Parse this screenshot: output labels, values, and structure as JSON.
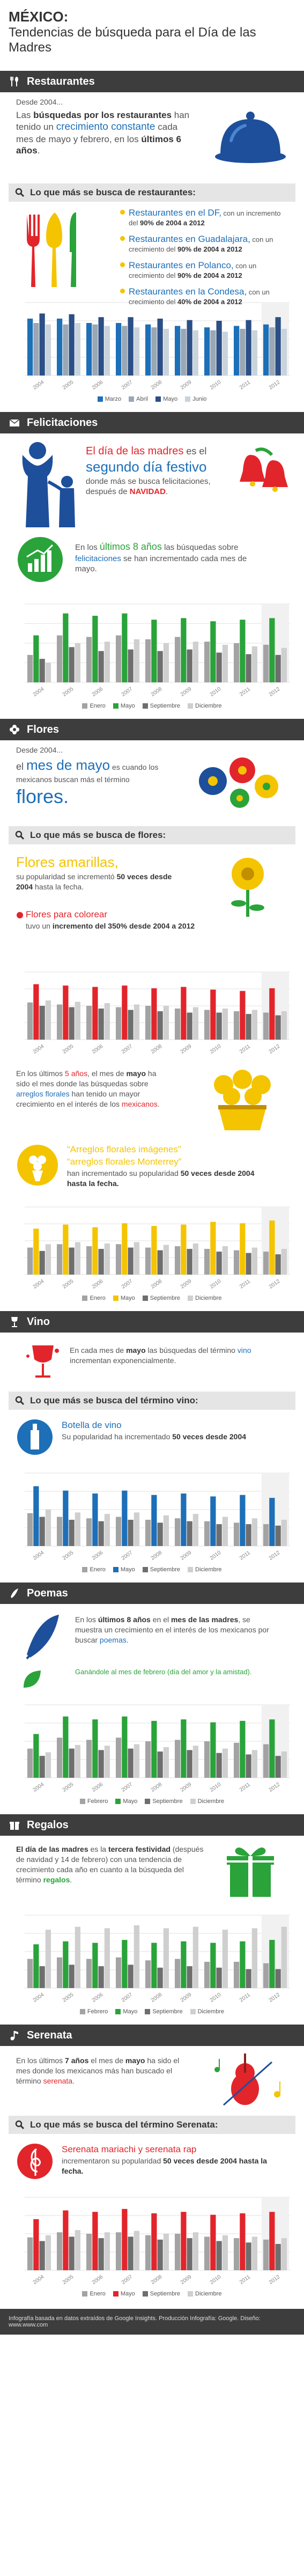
{
  "header": {
    "country": "MÉXICO:",
    "subtitle": "Tendencias de búsqueda para el Día de las Madres"
  },
  "restaurantes": {
    "title": "Restaurantes",
    "intro_small": "Desde 2004...",
    "intro_p1": "Las ",
    "intro_b1": "búsquedas por los restaurantes",
    "intro_p2": " han tenido un ",
    "intro_blue": "crecimiento constante",
    "intro_p3": " cada mes de mayo y febrero, en los ",
    "intro_b2": "últimos 6 años",
    "intro_p4": ".",
    "sub_title": "Lo que más se busca de restaurantes:",
    "items": [
      {
        "loc": "Restaurantes en el DF,",
        "pre": " con un incremento del ",
        "pct": "90% de 2004 a 2012"
      },
      {
        "loc": "Restaurantes en Guadalajara,",
        "pre": " con un crecimiento del ",
        "pct": "90% de 2004 a 2012"
      },
      {
        "loc": "Restaurantes en Polanco,",
        "pre": " con un crecimiento del ",
        "pct": "90% de 2004 a 2012"
      },
      {
        "loc": "Restaurantes en la Condesa,",
        "pre": " con un crecimiento del ",
        "pct": "40% de 2004 a 2012"
      }
    ]
  },
  "felicitaciones": {
    "title": "Felicitaciones",
    "p1_red": "El día de las madres",
    "p1_a": " es el ",
    "p1_blue": "segundo día festivo",
    "p1_b": " donde más se busca felicitaciones, después de ",
    "p1_red2": "NAVIDAD",
    "p1_c": ".",
    "p2_a": "En los ",
    "p2_green": "últimos 8 años",
    "p2_b": " las búsquedas sobre ",
    "p2_blue": "felicitaciones",
    "p2_c": " se han incrementado cada mes de mayo."
  },
  "flores": {
    "title": "Flores",
    "intro_small": "Desde 2004...",
    "p_a": "el ",
    "p_blue": "mes de mayo",
    "p_b": " es cuando los mexicanos buscan más el término ",
    "p_big": "flores.",
    "sub_title": "Lo que más se busca de flores:",
    "amarillas": "Flores amarillas,",
    "amarillas_desc1": "su popularidad se incrementó ",
    "amarillas_desc2": "50 veces desde 2004",
    "amarillas_desc3": " hasta la fecha.",
    "colorear": "Flores para colorear",
    "colorear_desc1": "tuvo un ",
    "colorear_desc2": "incremento del 350% desde 2004 a 2012",
    "p3_a": "En los últimos ",
    "p3_red": "5 años",
    "p3_b": ", el mes de ",
    "p3_bold": "mayo",
    "p3_c": " ha sido el mes donde las búsquedas sobre ",
    "p3_blue": "arreglos florales",
    "p3_d": " han tenido un mayor crecimiento en el interés de los ",
    "p3_red2": "mexicanos",
    "p3_e": ".",
    "arreglos1": "“Arreglos florales imágenes”",
    "arreglos2": "“arreglos florales Monterrey”",
    "arreglos_desc1": "han incrementado su popularidad ",
    "arreglos_desc2": "50 veces desde 2004 hasta la fecha."
  },
  "vino": {
    "title": "Vino",
    "p_a": "En cada mes de ",
    "p_bold": "mayo",
    "p_b": " las búsquedas del término ",
    "p_blue": "vino",
    "p_c": " incrementan exponencialmente.",
    "sub_title": "Lo que más se busca del término vino:",
    "item": "Botella de vino",
    "item_desc1": "Su popularidad ha incrementado ",
    "item_desc2": "50 veces desde 2004"
  },
  "poemas": {
    "title": "Poemas",
    "p_a": "En los ",
    "p_bold": "últimos 8 años",
    "p_b": " en el ",
    "p_bold2": "mes de las madres",
    "p_c": ", se muestra un crecimiento en el interés de los mexicanos por buscar ",
    "p_blue": "poemas",
    "p_d": ".",
    "p2_green": "Ganándole al mes de febrero (día del amor y la amistad)."
  },
  "regalos": {
    "title": "Regalos",
    "p_bold": "El día de las madres",
    "p_a": " es la ",
    "p_bold2": "tercera festividad",
    "p_b": " (después de navidad y 14 de febrero) con una tendencia de crecimiento cada año en cuanto a la búsqueda del término ",
    "p_blue": "regalos",
    "p_c": "."
  },
  "serenata": {
    "title": "Serenata",
    "p_a": "En los últimos ",
    "p_bold": "7 años",
    "p_b": " el mes de ",
    "p_bold2": "mayo",
    "p_c": " ha sido el mes donde los mexicanos más han buscado el término ",
    "p_red": "serenata",
    "p_d": ".",
    "sub_title": "Lo que más se busca del término Serenata:",
    "item": "Serenata mariachi y serenata rap",
    "item_desc1": "incrementaron su popularidad ",
    "item_desc2": "50 veces desde 2004 hasta la fecha."
  },
  "footer": {
    "text": "Infografía basada en datos extraídos de Google Insights. Producción Infografía: Google. Diseño: www.www.com"
  },
  "colors": {
    "blue": "#1d6fb8",
    "red": "#e2252b",
    "green": "#2aa33a",
    "yellow": "#f4c400",
    "dark": "#3d3d3d"
  },
  "chart_data": [
    {
      "type": "bar",
      "id": "restaurantes",
      "categories": [
        "2004",
        "2005",
        "2006",
        "2007",
        "2008",
        "2009",
        "2010",
        "2011",
        "2012"
      ],
      "ylim": [
        0,
        100
      ],
      "series": [
        {
          "name": "Marzo",
          "color": "#1d6fb8",
          "values": [
            78,
            78,
            72,
            72,
            70,
            68,
            66,
            68,
            70
          ]
        },
        {
          "name": "Abril",
          "color": "#9aa7b4",
          "values": [
            72,
            70,
            70,
            68,
            66,
            64,
            62,
            64,
            66
          ]
        },
        {
          "name": "Mayo",
          "color": "#2b4f86",
          "values": [
            85,
            84,
            80,
            80,
            78,
            76,
            75,
            76,
            80
          ]
        },
        {
          "name": "Junio",
          "color": "#c9d3dc",
          "values": [
            70,
            72,
            68,
            66,
            64,
            62,
            60,
            62,
            64
          ]
        }
      ]
    },
    {
      "type": "bar",
      "id": "felicitaciones",
      "categories": [
        "2004",
        "2005",
        "2006",
        "2007",
        "2008",
        "2009",
        "2010",
        "2011",
        "2012"
      ],
      "ylim": [
        0,
        100
      ],
      "series": [
        {
          "name": "Enero",
          "color": "#a3a3a3",
          "values": [
            35,
            60,
            58,
            60,
            55,
            58,
            52,
            50,
            48
          ]
        },
        {
          "name": "Mayo",
          "color": "#2aa33a",
          "values": [
            60,
            88,
            85,
            88,
            80,
            82,
            78,
            80,
            82
          ]
        },
        {
          "name": "Septiembre",
          "color": "#6e6e6e",
          "values": [
            30,
            45,
            40,
            42,
            40,
            42,
            38,
            36,
            35
          ]
        },
        {
          "name": "Diciembre",
          "color": "#cfcfcf",
          "values": [
            25,
            50,
            52,
            55,
            50,
            52,
            48,
            46,
            44
          ]
        }
      ]
    },
    {
      "type": "bar",
      "id": "flores",
      "categories": [
        "2004",
        "2005",
        "2006",
        "2007",
        "2008",
        "2009",
        "2010",
        "2011",
        "2012"
      ],
      "ylim": [
        0,
        100
      ],
      "series": [
        {
          "name": "Enero",
          "color": "#a3a3a3",
          "values": [
            55,
            52,
            50,
            48,
            50,
            46,
            44,
            42,
            40
          ]
        },
        {
          "name": "Mayo",
          "color": "#e2252b",
          "values": [
            82,
            80,
            78,
            80,
            76,
            78,
            74,
            72,
            76
          ]
        },
        {
          "name": "Septiembre",
          "color": "#6e6e6e",
          "values": [
            50,
            48,
            46,
            44,
            42,
            40,
            40,
            38,
            36
          ]
        },
        {
          "name": "Diciembre",
          "color": "#cfcfcf",
          "values": [
            58,
            56,
            54,
            52,
            50,
            48,
            46,
            44,
            42
          ]
        }
      ]
    },
    {
      "type": "bar",
      "id": "arreglos",
      "categories": [
        "2004",
        "2005",
        "2006",
        "2007",
        "2008",
        "2009",
        "2010",
        "2011",
        "2012"
      ],
      "ylim": [
        0,
        100
      ],
      "series": [
        {
          "name": "Enero",
          "color": "#a3a3a3",
          "values": [
            40,
            45,
            42,
            45,
            40,
            42,
            38,
            36,
            34
          ]
        },
        {
          "name": "Mayo",
          "color": "#f4c400",
          "values": [
            68,
            74,
            70,
            76,
            72,
            74,
            78,
            76,
            80
          ]
        },
        {
          "name": "Septiembre",
          "color": "#6e6e6e",
          "values": [
            35,
            40,
            38,
            40,
            36,
            38,
            34,
            32,
            30
          ]
        },
        {
          "name": "Diciembre",
          "color": "#cfcfcf",
          "values": [
            45,
            48,
            46,
            48,
            44,
            46,
            42,
            40,
            38
          ]
        }
      ]
    },
    {
      "type": "bar",
      "id": "vino",
      "categories": [
        "2004",
        "2005",
        "2006",
        "2007",
        "2008",
        "2009",
        "2010",
        "2011",
        "2012"
      ],
      "ylim": [
        0,
        100
      ],
      "series": [
        {
          "name": "Enero",
          "color": "#a3a3a3",
          "values": [
            45,
            40,
            38,
            40,
            36,
            38,
            34,
            32,
            30
          ]
        },
        {
          "name": "Mayo",
          "color": "#1d6fb8",
          "values": [
            82,
            76,
            72,
            76,
            70,
            72,
            68,
            70,
            66
          ]
        },
        {
          "name": "Septiembre",
          "color": "#6e6e6e",
          "values": [
            40,
            36,
            34,
            36,
            32,
            34,
            30,
            30,
            28
          ]
        },
        {
          "name": "Diciembre",
          "color": "#cfcfcf",
          "values": [
            50,
            46,
            44,
            46,
            42,
            44,
            40,
            38,
            36
          ]
        }
      ]
    },
    {
      "type": "bar",
      "id": "poemas",
      "categories": [
        "2004",
        "2005",
        "2006",
        "2007",
        "2008",
        "2009",
        "2010",
        "2011",
        "2012"
      ],
      "ylim": [
        0,
        100
      ],
      "series": [
        {
          "name": "Febrero",
          "color": "#a3a3a3",
          "values": [
            40,
            55,
            52,
            55,
            50,
            52,
            50,
            48,
            46
          ]
        },
        {
          "name": "Mayo",
          "color": "#2aa33a",
          "values": [
            60,
            84,
            80,
            84,
            78,
            80,
            76,
            78,
            80
          ]
        },
        {
          "name": "Septiembre",
          "color": "#6e6e6e",
          "values": [
            30,
            40,
            38,
            40,
            36,
            38,
            34,
            32,
            30
          ]
        },
        {
          "name": "Diciembre",
          "color": "#cfcfcf",
          "values": [
            35,
            45,
            44,
            46,
            42,
            44,
            40,
            38,
            36
          ]
        }
      ]
    },
    {
      "type": "bar",
      "id": "regalos",
      "categories": [
        "2004",
        "2005",
        "2006",
        "2007",
        "2008",
        "2009",
        "2010",
        "2011",
        "2012"
      ],
      "ylim": [
        0,
        100
      ],
      "series": [
        {
          "name": "Febrero",
          "color": "#a3a3a3",
          "values": [
            40,
            42,
            40,
            42,
            38,
            40,
            36,
            36,
            34
          ]
        },
        {
          "name": "Mayo",
          "color": "#2aa33a",
          "values": [
            60,
            64,
            62,
            66,
            62,
            64,
            62,
            64,
            66
          ]
        },
        {
          "name": "Septiembre",
          "color": "#6e6e6e",
          "values": [
            30,
            32,
            30,
            32,
            28,
            30,
            28,
            26,
            26
          ]
        },
        {
          "name": "Diciembre",
          "color": "#cfcfcf",
          "values": [
            80,
            84,
            82,
            86,
            82,
            84,
            80,
            82,
            84
          ]
        }
      ]
    },
    {
      "type": "bar",
      "id": "serenata",
      "categories": [
        "2004",
        "2005",
        "2006",
        "2007",
        "2008",
        "2009",
        "2010",
        "2011",
        "2012"
      ],
      "ylim": [
        0,
        100
      ],
      "series": [
        {
          "name": "Enero",
          "color": "#a3a3a3",
          "values": [
            45,
            52,
            50,
            52,
            48,
            50,
            46,
            44,
            42
          ]
        },
        {
          "name": "Mayo",
          "color": "#e2252b",
          "values": [
            70,
            82,
            80,
            84,
            78,
            80,
            76,
            78,
            80
          ]
        },
        {
          "name": "Septiembre",
          "color": "#6e6e6e",
          "values": [
            40,
            46,
            44,
            46,
            42,
            44,
            40,
            38,
            36
          ]
        },
        {
          "name": "Diciembre",
          "color": "#cfcfcf",
          "values": [
            48,
            55,
            52,
            54,
            50,
            52,
            48,
            46,
            44
          ]
        }
      ]
    }
  ]
}
